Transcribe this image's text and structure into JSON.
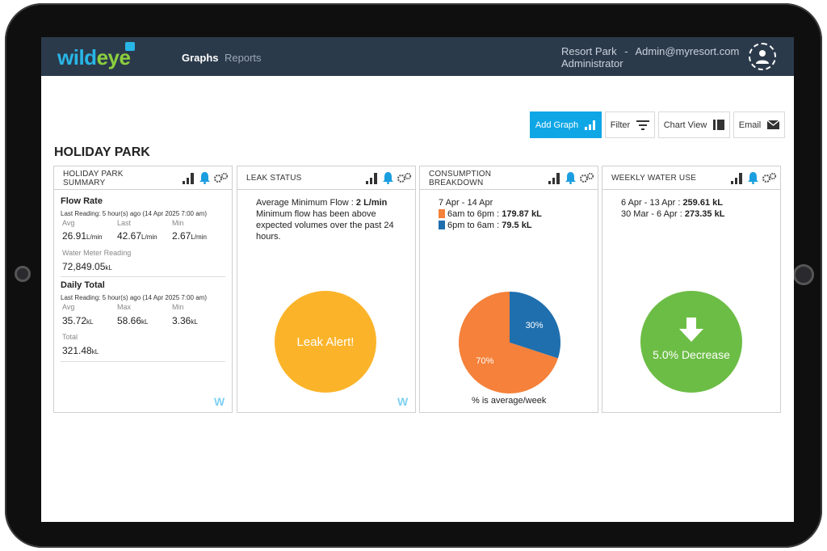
{
  "nav": {
    "logo_part1": "wild",
    "logo_part2": "eye",
    "links": [
      "Graphs",
      "Reports"
    ],
    "site": "Resort Park",
    "separator": "-",
    "email": "Admin@myresort.com",
    "role": "Administrator"
  },
  "toolbar": {
    "add_graph": "Add Graph",
    "filter": "Filter",
    "chart_view": "Chart View",
    "email": "Email"
  },
  "page_title": "HOLIDAY PARK",
  "cards": {
    "summary": {
      "title_line1": "HOLIDAY PARK",
      "title_line2": "SUMMARY",
      "flow_rate": {
        "heading": "Flow Rate",
        "last_reading": "Last Reading: 5 hour(s) ago (14 Apr 2025 7:00 am)",
        "avg_label": "Avg",
        "avg_value": "26.91",
        "avg_unit": "L/min",
        "last_label": "Last",
        "last_value": "42.67",
        "last_unit": "L/min",
        "min_label": "Min",
        "min_value": "2.67",
        "min_unit": "L/min",
        "meter_label": "Water Meter Reading",
        "meter_value": "72,849.05",
        "meter_unit": "kL"
      },
      "daily_total": {
        "heading": "Daily Total",
        "last_reading": "Last Reading: 5 hour(s) ago (14 Apr 2025 7:00 am)",
        "avg_label": "Avg",
        "avg_value": "35.72",
        "avg_unit": "kL",
        "max_label": "Max",
        "max_value": "58.66",
        "max_unit": "kL",
        "min_label": "Min",
        "min_value": "3.36",
        "min_unit": "kL",
        "total_label": "Total",
        "total_value": "321.48",
        "total_unit": "kL"
      },
      "watermark": "W"
    },
    "leak": {
      "title": "LEAK STATUS",
      "line1_prefix": "Average Minimum Flow : ",
      "line1_value": "2 L/min",
      "message": "Minimum flow has been above expected volumes over the past 24 hours.",
      "circle_text": "Leak Alert!",
      "circle_color": "#fbb42a",
      "watermark": "W"
    },
    "consumption": {
      "title_line1": "CONSUMPTION",
      "title_line2": "BREAKDOWN",
      "period": "7 Apr - 14 Apr",
      "day_label": "6am to 6pm : ",
      "day_value": "179.87 kL",
      "night_label": "6pm to 6am : ",
      "night_value": "79.5 kL",
      "caption": "% is average/week",
      "colors": {
        "day": "#f5813a",
        "night": "#1f6fae"
      }
    },
    "weekly": {
      "title": "WEEKLY WATER USE",
      "row1_label": "6 Apr - 13 Apr : ",
      "row1_value": "259.61 kL",
      "row2_label": "30 Mar - 6 Apr : ",
      "row2_value": "273.35 kL",
      "circle_text": "5.0% Decrease",
      "circle_color": "#6cbd45"
    }
  },
  "chart_data": {
    "type": "pie",
    "categories": [
      "6am to 6pm",
      "6pm to 6am"
    ],
    "values": [
      70,
      30
    ],
    "labels": [
      "70%",
      "30%"
    ],
    "colors": [
      "#f5813a",
      "#1f6fae"
    ],
    "caption": "% is average/week"
  },
  "colors": {
    "navbar": "#2b3a4b",
    "accent": "#0fa6e6",
    "bell": "#1a9ee0"
  }
}
